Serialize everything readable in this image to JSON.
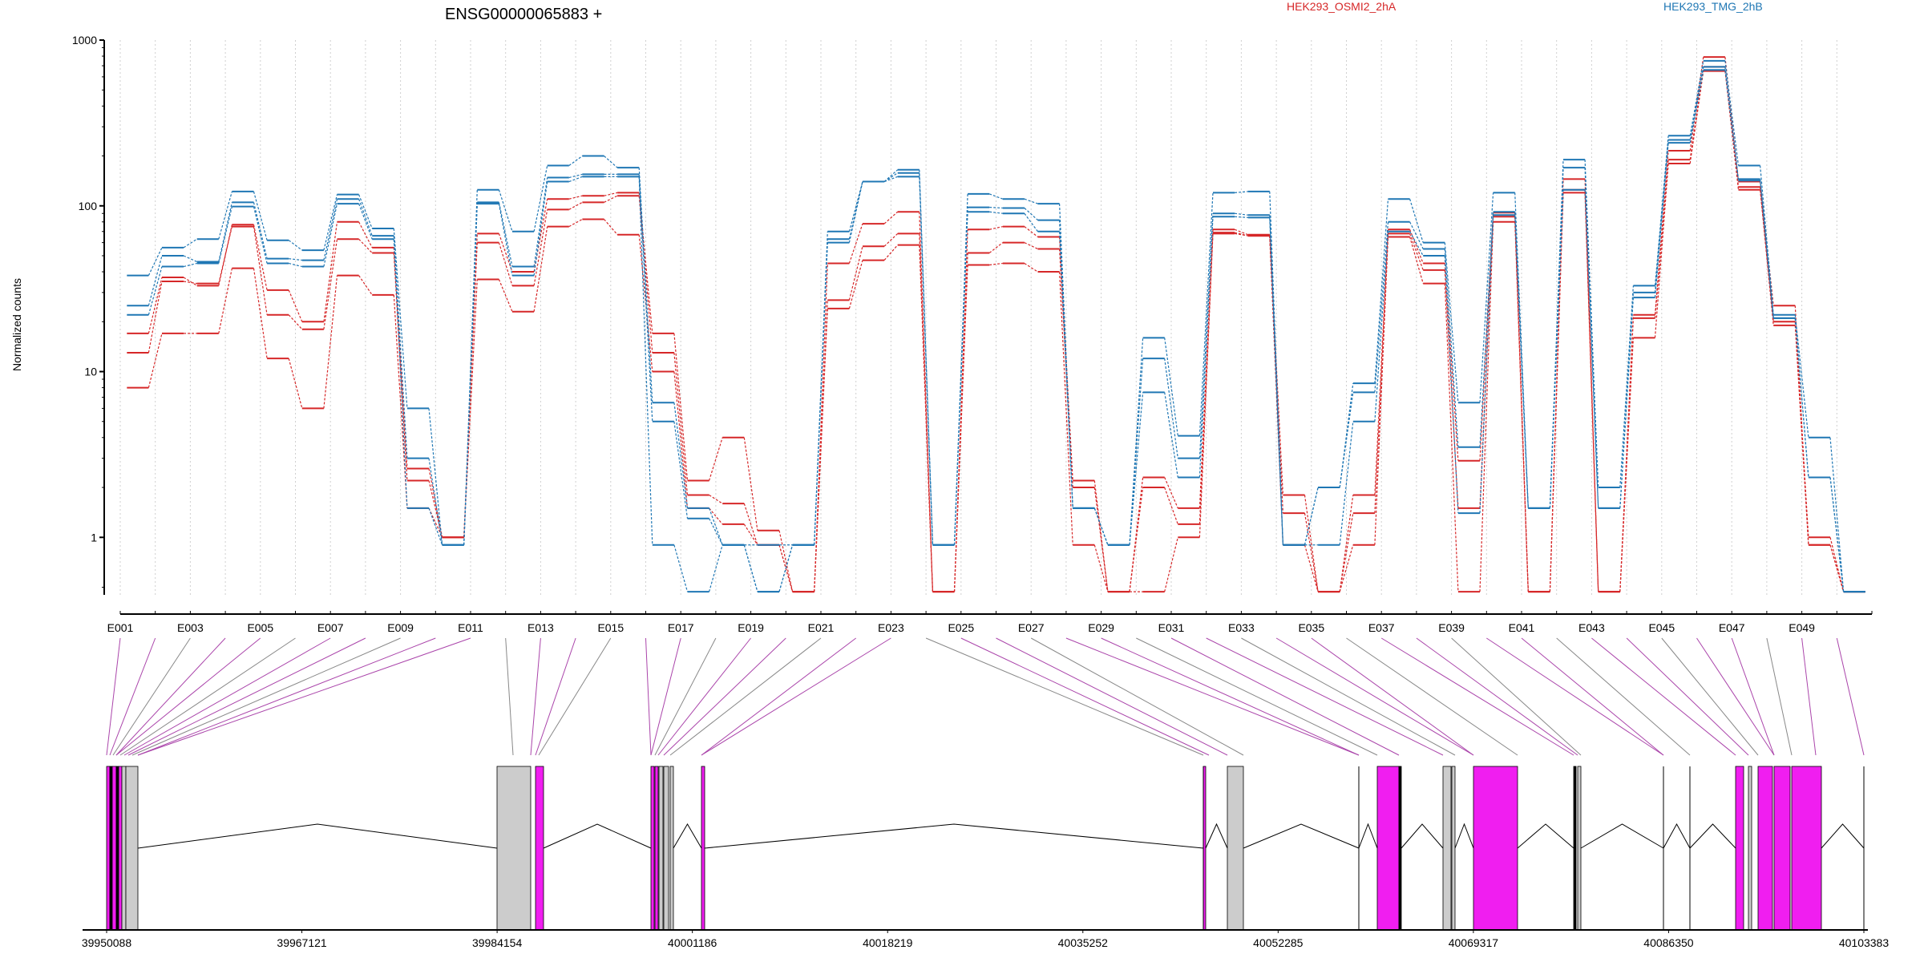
{
  "gene_title": "ENSG00000065883 +",
  "legend": [
    {
      "label": "HEK293_OSMI2_2hA",
      "color": "#d62728"
    },
    {
      "label": "HEK293_TMG_2hB",
      "color": "#1f77b4"
    }
  ],
  "colors": {
    "exon_pink": "#f01ef0",
    "exon_gray": "#cccccc",
    "purple_link": "#aa44aa",
    "gray_link": "#888888",
    "axis": "#000000"
  },
  "chart_data": [
    {
      "type": "line",
      "ylabel": "Normalized counts",
      "yscale": "log",
      "ylim": [
        0.45,
        1000
      ],
      "y_ticks": [
        "1000",
        "100",
        "10",
        "1"
      ],
      "x": [
        "E001",
        "E002",
        "E003",
        "E004",
        "E005",
        "E006",
        "E007",
        "E008",
        "E009",
        "E010",
        "E011",
        "E012",
        "E013",
        "E014",
        "E015",
        "E016",
        "E017",
        "E018",
        "E019",
        "E020",
        "E021",
        "E022",
        "E023",
        "E024",
        "E025",
        "E026",
        "E027",
        "E028",
        "E029",
        "E030",
        "E031",
        "E032",
        "E033",
        "E034",
        "E035",
        "E036",
        "E037",
        "E038",
        "E039",
        "E040",
        "E041",
        "E042",
        "E043",
        "E044",
        "E045",
        "E046",
        "E047",
        "E048",
        "E049",
        "E050"
      ],
      "x_tick_labels": [
        "E001",
        "E003",
        "E005",
        "E007",
        "E009",
        "E011",
        "E013",
        "E015",
        "E017",
        "E019",
        "E021",
        "E023",
        "E025",
        "E027",
        "E029",
        "E031",
        "E033",
        "E035",
        "E037",
        "E039",
        "E041",
        "E043",
        "E045",
        "E047",
        "E049"
      ],
      "series": [
        {
          "group": "HEK293_OSMI2_2hA",
          "color": "#d62728",
          "values": [
            8,
            17,
            17,
            42,
            12,
            6,
            38,
            29,
            1.5,
            1,
            36,
            23,
            75,
            83,
            67,
            10,
            1.5,
            1.2,
            0.9,
            0.47,
            24,
            47,
            58,
            0.47,
            44,
            45,
            40,
            0.9,
            0.47,
            0.47,
            1,
            68,
            66,
            0.9,
            0.47,
            0.9,
            65,
            34,
            0.47,
            80,
            0.47,
            120,
            0.47,
            16,
            180,
            650,
            125,
            19,
            0.9,
            0.47
          ]
        },
        {
          "group": "HEK293_OSMI2_2hA",
          "color": "#d62728",
          "values": [
            13,
            35,
            34,
            75,
            22,
            18,
            63,
            52,
            2.2,
            1,
            60,
            33,
            95,
            105,
            115,
            13,
            1.8,
            1.6,
            0.9,
            0.47,
            27,
            57,
            68,
            0.47,
            52,
            60,
            55,
            2,
            0.47,
            2,
            1.2,
            69,
            66,
            1.4,
            0.47,
            1.4,
            68,
            41,
            1.5,
            86,
            0.47,
            125,
            0.47,
            21,
            190,
            690,
            130,
            20,
            1,
            0.47
          ]
        },
        {
          "group": "HEK293_OSMI2_2hA",
          "color": "#d62728",
          "values": [
            17,
            37,
            33,
            77,
            31,
            20,
            80,
            56,
            2.6,
            1,
            68,
            40,
            110,
            115,
            120,
            17,
            2.2,
            4,
            1.1,
            0.47,
            45,
            78,
            92,
            0.47,
            72,
            75,
            65,
            2.2,
            0.47,
            2.3,
            1.5,
            72,
            67,
            1.8,
            0.47,
            1.8,
            72,
            45,
            2.9,
            91,
            0.47,
            145,
            0.47,
            22,
            215,
            790,
            140,
            25,
            0.9,
            0.47
          ]
        },
        {
          "group": "HEK293_TMG_2hB",
          "color": "#1f77b4",
          "values": [
            22,
            43,
            45,
            99,
            45,
            43,
            103,
            63,
            1.5,
            0.9,
            103,
            38,
            140,
            150,
            150,
            0.9,
            0.47,
            0.9,
            0.9,
            0.9,
            60,
            140,
            150,
            0.9,
            92,
            90,
            70,
            1.5,
            0.9,
            7.5,
            2.3,
            86,
            85,
            0.9,
            0.9,
            5,
            70,
            50,
            1.4,
            88,
            1.5,
            125,
            1.5,
            28,
            240,
            660,
            142,
            21,
            2.3,
            0.47
          ]
        },
        {
          "group": "HEK293_TMG_2hB",
          "color": "#1f77b4",
          "values": [
            25,
            50,
            46,
            105,
            48,
            47,
            110,
            66,
            3,
            0.9,
            105,
            43,
            148,
            155,
            155,
            5,
            1.3,
            0.9,
            0.47,
            0.9,
            63,
            140,
            158,
            0.9,
            98,
            97,
            82,
            1.5,
            0.9,
            12,
            3,
            90,
            88,
            0.9,
            2,
            7.5,
            80,
            55,
            3.5,
            92,
            1.5,
            170,
            1.5,
            30,
            250,
            690,
            145,
            21,
            2.3,
            0.47
          ]
        },
        {
          "group": "HEK293_TMG_2hB",
          "color": "#1f77b4",
          "values": [
            38,
            56,
            63,
            122,
            62,
            54,
            117,
            73,
            6,
            0.9,
            125,
            70,
            175,
            200,
            170,
            6.5,
            1.5,
            0.9,
            0.47,
            0.9,
            70,
            140,
            165,
            0.9,
            118,
            110,
            103,
            1.5,
            0.9,
            16,
            4.1,
            120,
            122,
            0.9,
            2,
            8.5,
            110,
            60,
            6.5,
            120,
            1.5,
            190,
            2,
            33,
            265,
            750,
            175,
            22,
            4,
            0.47
          ]
        }
      ]
    },
    {
      "type": "gene-structure",
      "x_ticks": [
        "39950088",
        "39967121",
        "39984154",
        "40001186",
        "40018219",
        "40035252",
        "40052285",
        "40069317",
        "40086350",
        "40103383"
      ]
    }
  ]
}
